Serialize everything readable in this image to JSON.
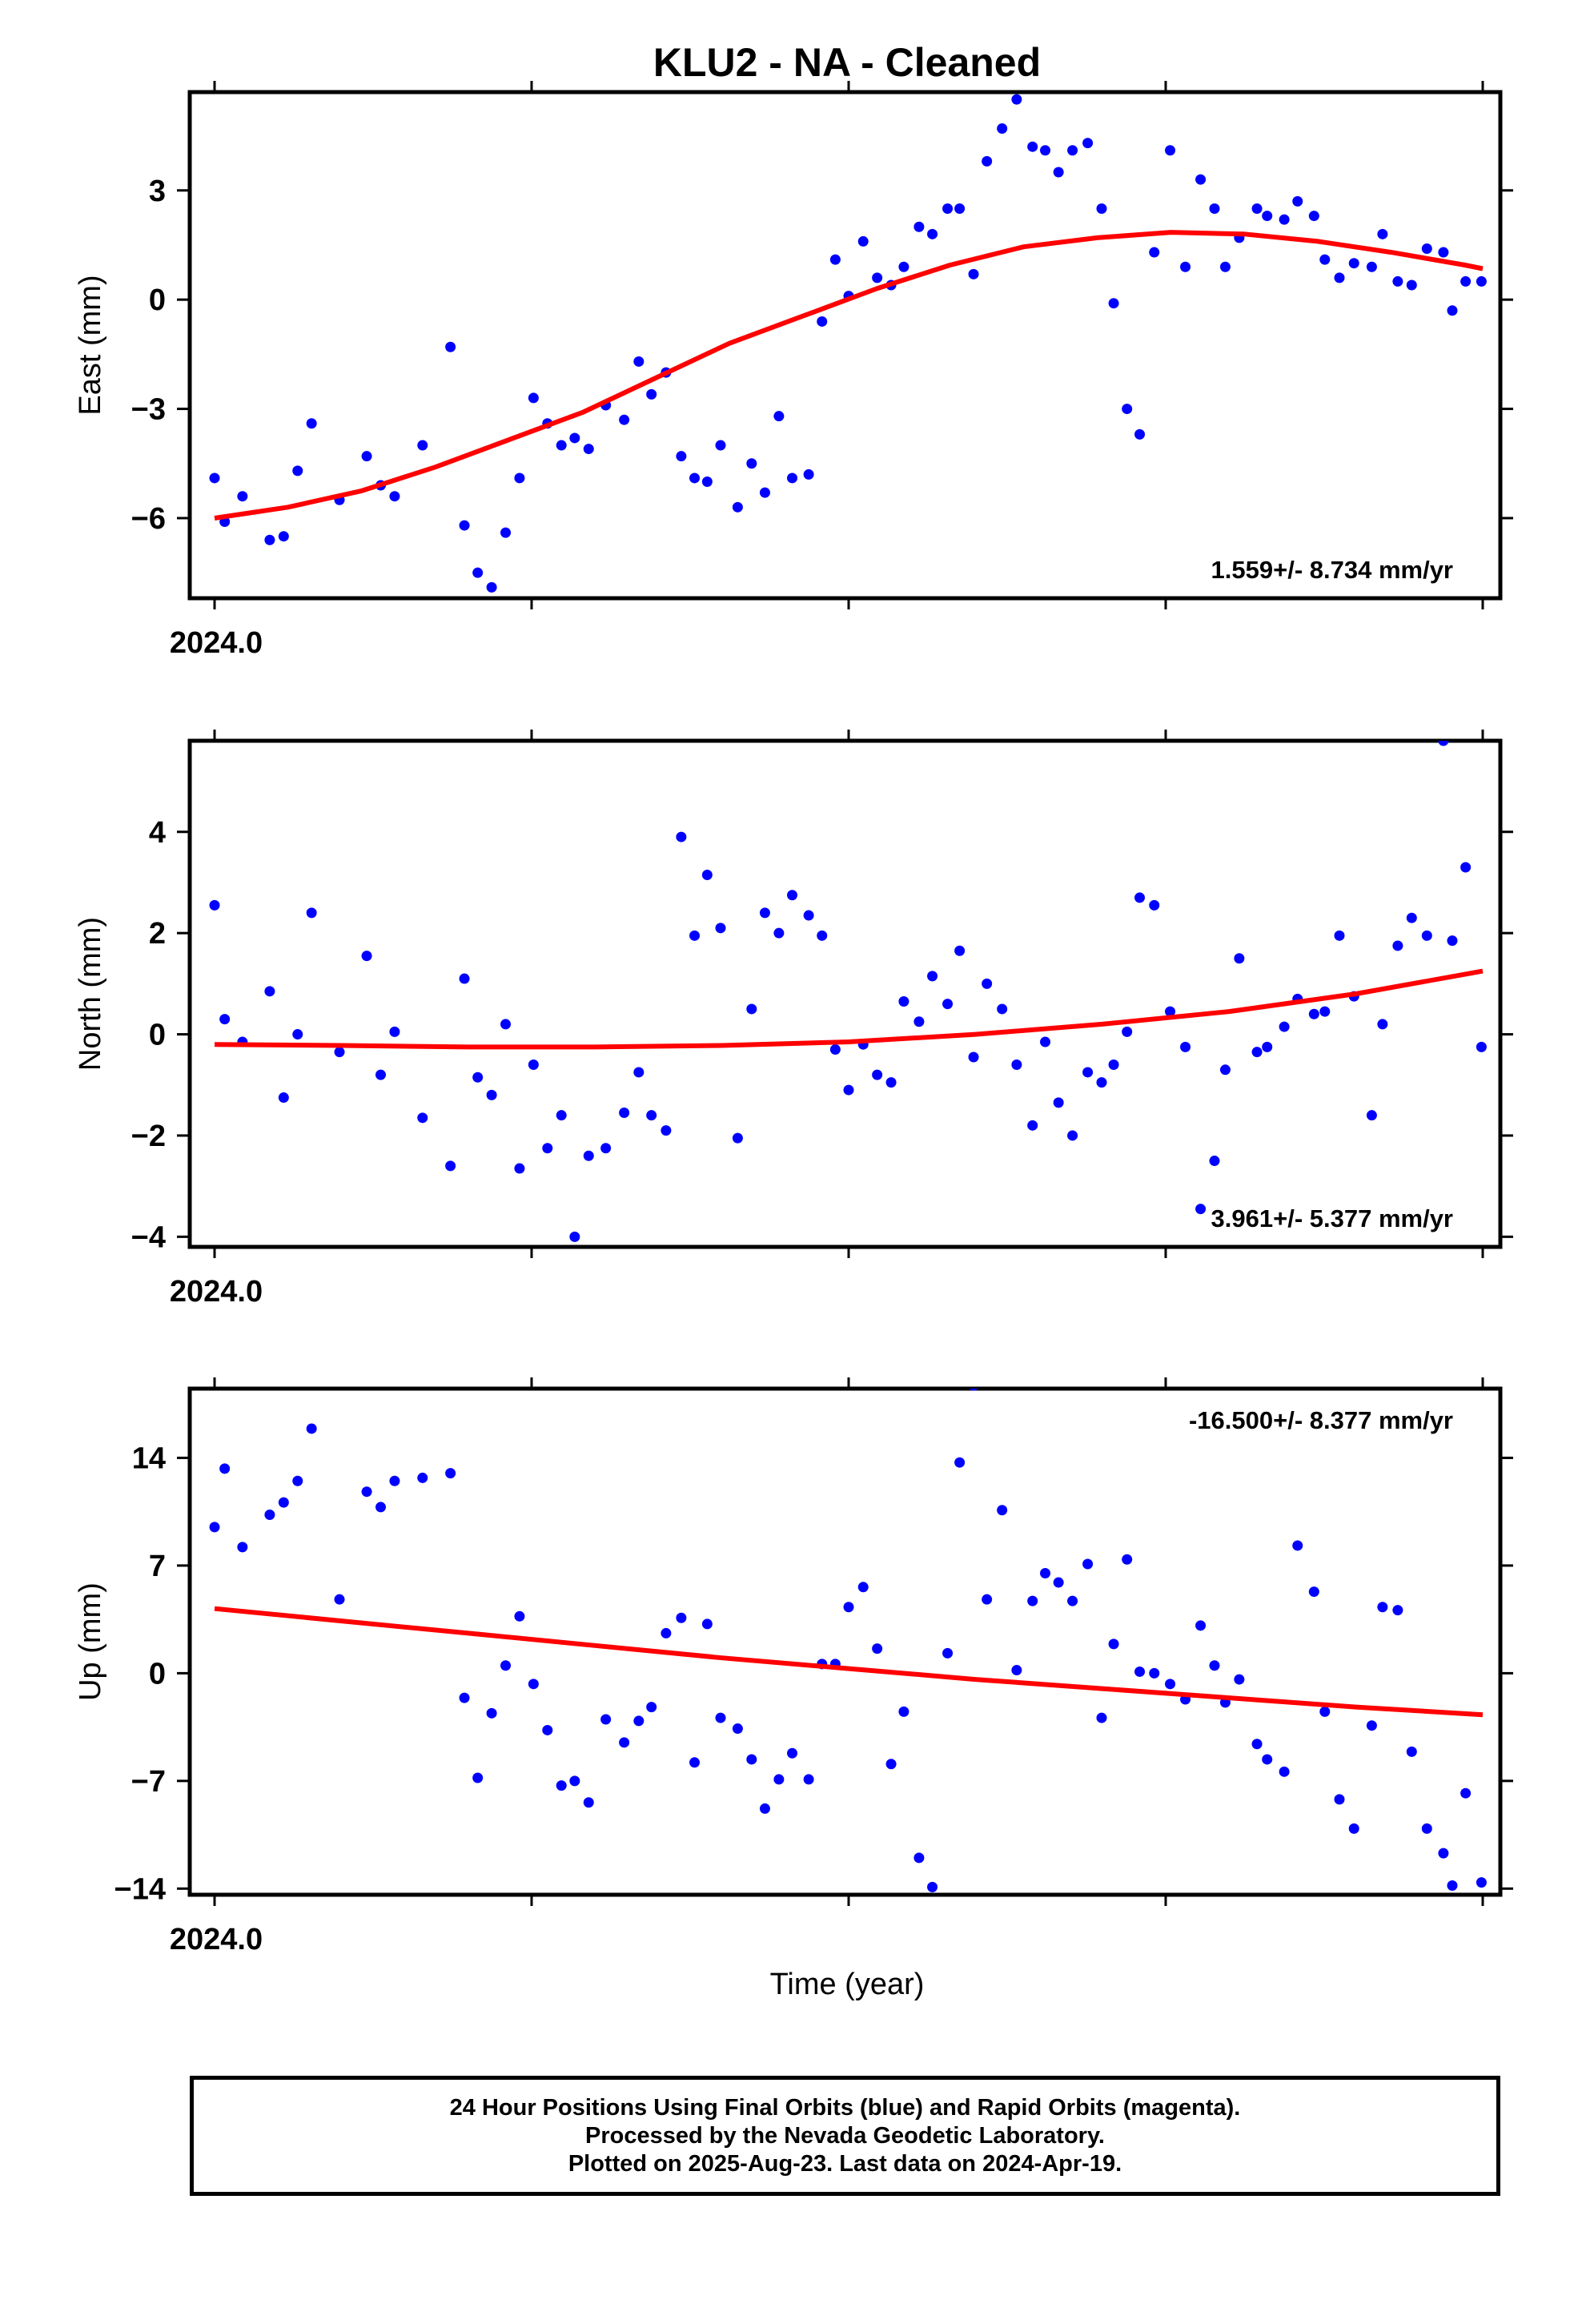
{
  "chart_data": {
    "title": "KLU2  - NA - Cleaned",
    "xlabel": "Time (year)",
    "x_tick_label": "2024.0",
    "point_color": "#0000ff",
    "fit_color": "#ff0000",
    "panels": [
      {
        "type": "scatter",
        "component": "east",
        "ylabel": "East (mm)",
        "ylim": [
          -8.2,
          5.7
        ],
        "yticks": [
          -6,
          -3,
          0,
          3
        ],
        "ytick_labels": [
          "−6",
          "−3",
          "0",
          "3"
        ],
        "rate_label": "1.559+/- 8.734 mm/yr",
        "rate_position": "bottom-right",
        "x": [
          2024.0,
          2024.0016,
          2024.0044,
          2024.0087,
          2024.0109,
          2024.0131,
          2024.0153,
          2024.0197,
          2024.024,
          2024.0262,
          2024.0284,
          2024.0328,
          2024.0372,
          2024.0394,
          2024.0415,
          2024.0437,
          2024.0459,
          2024.0481,
          2024.0503,
          2024.0525,
          2024.0547,
          2024.0568,
          2024.059,
          2024.0617,
          2024.0646,
          2024.0669,
          2024.0689,
          2024.0712,
          2024.0736,
          2024.0757,
          2024.0777,
          2024.0798,
          2024.0825,
          2024.0847,
          2024.0868,
          2024.089,
          2024.0911,
          2024.0937,
          2024.0958,
          2024.0979,
          2024.1,
          2024.1023,
          2024.1045,
          2024.1067,
          2024.1087,
          2024.1111,
          2024.1132,
          2024.1156,
          2024.1175,
          2024.1197,
          2024.1218,
          2024.1242,
          2024.1265,
          2024.129,
          2024.131,
          2024.1331,
          2024.1353,
          2024.1377,
          2024.1399,
          2024.1418,
          2024.1439,
          2024.1459,
          2024.1482,
          2024.1507,
          2024.1531,
          2024.1555,
          2024.1577,
          2024.1594,
          2024.1616,
          2024.1644,
          2024.166,
          2024.1687,
          2024.1708,
          2024.1734,
          2024.1751,
          2024.1774,
          2024.1797,
          2024.1825,
          2024.1842,
          2024.1866,
          2024.1888,
          2024.1912,
          2024.1938,
          2024.1952,
          2024.1973,
          2024.1998
        ],
        "y": [
          -4.9,
          -6.1,
          -5.4,
          -6.6,
          -6.5,
          -4.7,
          -3.4,
          -5.5,
          -4.3,
          -5.1,
          -5.4,
          -4.0,
          -1.3,
          -6.2,
          -7.5,
          -7.9,
          -6.4,
          -4.9,
          -2.7,
          -3.4,
          -4.0,
          -3.8,
          -4.1,
          -2.9,
          -3.3,
          -1.7,
          -2.6,
          -2.0,
          -4.3,
          -4.9,
          -5.0,
          -4.0,
          -5.7,
          -4.5,
          -5.3,
          -3.2,
          -4.9,
          -4.8,
          -0.6,
          1.1,
          0.1,
          1.6,
          0.6,
          0.4,
          0.9,
          2.0,
          1.8,
          2.5,
          2.5,
          0.7,
          3.8,
          4.7,
          5.5,
          4.2,
          4.1,
          3.5,
          4.1,
          4.3,
          2.5,
          -0.1,
          -3.0,
          -3.7,
          1.3,
          4.1,
          0.9,
          3.3,
          2.5,
          0.9,
          1.7,
          2.5,
          2.3,
          2.2,
          2.7,
          2.3,
          1.1,
          0.6,
          1.0,
          0.9,
          1.8,
          0.5,
          0.4,
          1.4,
          1.3,
          -0.3,
          0.5,
          0.5
        ],
        "fit_x": [
          2024.0,
          2024.0116,
          2024.0232,
          2024.0348,
          2024.0464,
          2024.058,
          2024.0696,
          2024.0812,
          2024.0928,
          2024.1044,
          2024.116,
          2024.1276,
          2024.1392,
          2024.1508,
          2024.1624,
          2024.174,
          2024.1856,
          2024.1972,
          2024.2
        ],
        "fit_y": [
          -6.0,
          -5.7,
          -5.25,
          -4.6,
          -3.85,
          -3.1,
          -2.15,
          -1.2,
          -0.45,
          0.3,
          0.95,
          1.45,
          1.7,
          1.85,
          1.8,
          1.6,
          1.3,
          0.95,
          0.85
        ]
      },
      {
        "type": "scatter",
        "component": "north",
        "ylabel": "North (mm)",
        "ylim": [
          -4.2,
          5.8
        ],
        "yticks": [
          -4,
          -2,
          0,
          2,
          4
        ],
        "ytick_labels": [
          "−4",
          "−2",
          "0",
          "2",
          "4"
        ],
        "rate_label": "3.961+/- 5.377 mm/yr",
        "rate_position": "bottom-right",
        "x": [
          2024.0,
          2024.0016,
          2024.0044,
          2024.0087,
          2024.0109,
          2024.0131,
          2024.0153,
          2024.0197,
          2024.024,
          2024.0262,
          2024.0284,
          2024.0328,
          2024.0372,
          2024.0394,
          2024.0415,
          2024.0437,
          2024.0459,
          2024.0481,
          2024.0503,
          2024.0525,
          2024.0547,
          2024.0568,
          2024.059,
          2024.0617,
          2024.0646,
          2024.0669,
          2024.0689,
          2024.0712,
          2024.0736,
          2024.0757,
          2024.0777,
          2024.0798,
          2024.0825,
          2024.0847,
          2024.0868,
          2024.089,
          2024.0911,
          2024.0937,
          2024.0958,
          2024.0979,
          2024.1,
          2024.1023,
          2024.1045,
          2024.1067,
          2024.1087,
          2024.1111,
          2024.1132,
          2024.1156,
          2024.1175,
          2024.1197,
          2024.1218,
          2024.1242,
          2024.1265,
          2024.129,
          2024.131,
          2024.1331,
          2024.1353,
          2024.1377,
          2024.1399,
          2024.1418,
          2024.1439,
          2024.1459,
          2024.1482,
          2024.1507,
          2024.1531,
          2024.1555,
          2024.1577,
          2024.1594,
          2024.1616,
          2024.1644,
          2024.166,
          2024.1687,
          2024.1708,
          2024.1734,
          2024.1751,
          2024.1774,
          2024.1797,
          2024.1825,
          2024.1842,
          2024.1866,
          2024.1888,
          2024.1912,
          2024.1938,
          2024.1952,
          2024.1973,
          2024.1998
        ],
        "y": [
          2.55,
          0.3,
          -0.15,
          0.85,
          -1.25,
          0.0,
          2.4,
          -0.35,
          1.55,
          -0.8,
          0.05,
          -1.65,
          -2.6,
          1.1,
          -0.85,
          -1.2,
          0.2,
          -2.65,
          -0.6,
          -2.25,
          -1.6,
          -4.0,
          -2.4,
          -2.25,
          -1.55,
          -0.75,
          -1.6,
          -1.9,
          3.9,
          1.95,
          3.15,
          2.1,
          -2.05,
          0.5,
          2.4,
          2.0,
          2.75,
          2.35,
          1.95,
          -0.3,
          -1.1,
          -0.2,
          -0.8,
          -0.95,
          0.65,
          0.25,
          1.15,
          0.6,
          1.65,
          -0.45,
          1.0,
          0.5,
          -0.6,
          -1.8,
          -0.15,
          -1.35,
          -2.0,
          -0.75,
          -0.95,
          -0.6,
          0.05,
          2.7,
          2.55,
          0.45,
          -0.25,
          -3.45,
          -2.5,
          -0.7,
          1.5,
          -0.35,
          -0.25,
          0.15,
          0.7,
          0.4,
          0.45,
          1.95,
          0.75,
          -1.6,
          0.2,
          1.75,
          2.3,
          1.95,
          5.8,
          1.85,
          3.3,
          -0.25
        ],
        "fit_x": [
          2024.0,
          2024.02,
          2024.04,
          2024.06,
          2024.08,
          2024.1,
          2024.12,
          2024.14,
          2024.16,
          2024.18,
          2024.2
        ],
        "fit_y": [
          -0.2,
          -0.22,
          -0.25,
          -0.25,
          -0.22,
          -0.15,
          0.0,
          0.2,
          0.45,
          0.8,
          1.25
        ]
      },
      {
        "type": "scatter",
        "component": "up",
        "ylabel": "Up (mm)",
        "ylim": [
          -14.4,
          18.5
        ],
        "yticks": [
          -14,
          -7,
          0,
          7,
          14
        ],
        "ytick_labels": [
          "−14",
          "−7",
          "0",
          "7",
          "14"
        ],
        "rate_label": "-16.500+/- 8.377 mm/yr",
        "rate_position": "top-right",
        "x": [
          2024.0,
          2024.0016,
          2024.0044,
          2024.0087,
          2024.0109,
          2024.0131,
          2024.0153,
          2024.0197,
          2024.024,
          2024.0262,
          2024.0284,
          2024.0328,
          2024.0372,
          2024.0394,
          2024.0415,
          2024.0437,
          2024.0459,
          2024.0481,
          2024.0503,
          2024.0525,
          2024.0547,
          2024.0568,
          2024.059,
          2024.0617,
          2024.0646,
          2024.0669,
          2024.0689,
          2024.0712,
          2024.0736,
          2024.0757,
          2024.0777,
          2024.0798,
          2024.0825,
          2024.0847,
          2024.0868,
          2024.089,
          2024.0911,
          2024.0937,
          2024.0958,
          2024.0979,
          2024.1,
          2024.1023,
          2024.1045,
          2024.1067,
          2024.1087,
          2024.1111,
          2024.1132,
          2024.1156,
          2024.1175,
          2024.1197,
          2024.1218,
          2024.1242,
          2024.1265,
          2024.129,
          2024.131,
          2024.1331,
          2024.1353,
          2024.1377,
          2024.1399,
          2024.1418,
          2024.1439,
          2024.1459,
          2024.1482,
          2024.1507,
          2024.1531,
          2024.1555,
          2024.1577,
          2024.1594,
          2024.1616,
          2024.1644,
          2024.166,
          2024.1687,
          2024.1708,
          2024.1734,
          2024.1751,
          2024.1774,
          2024.1797,
          2024.1825,
          2024.1842,
          2024.1866,
          2024.1888,
          2024.1912,
          2024.1938,
          2024.1952,
          2024.1973,
          2024.1998
        ],
        "y": [
          9.5,
          13.3,
          8.2,
          10.3,
          11.1,
          12.5,
          15.9,
          4.8,
          11.8,
          10.8,
          12.5,
          12.7,
          13.0,
          -1.6,
          -6.8,
          -2.6,
          0.5,
          3.7,
          -0.7,
          -3.7,
          -7.3,
          -7.0,
          -8.4,
          -3.0,
          -4.5,
          -3.1,
          -2.2,
          2.6,
          3.6,
          -5.8,
          3.2,
          -2.9,
          -3.6,
          -5.6,
          -8.8,
          -6.9,
          -5.2,
          -6.9,
          0.6,
          0.6,
          4.3,
          5.6,
          1.6,
          -5.9,
          -2.5,
          -12.0,
          -13.9,
          1.3,
          13.7,
          18.7,
          4.8,
          10.6,
          0.2,
          4.7,
          6.5,
          5.9,
          4.7,
          7.1,
          -2.9,
          1.9,
          7.4,
          0.1,
          0.0,
          -0.7,
          -1.7,
          3.1,
          0.5,
          -1.9,
          -0.4,
          -4.6,
          -5.6,
          -6.4,
          8.3,
          5.3,
          -2.5,
          -8.2,
          -10.1,
          -3.4,
          4.3,
          4.1,
          -5.1,
          -10.1,
          -11.7,
          -13.8,
          -7.8,
          -13.6
        ],
        "fit_x": [
          2024.0,
          2024.02,
          2024.04,
          2024.06,
          2024.08,
          2024.1,
          2024.12,
          2024.14,
          2024.16,
          2024.18,
          2024.2
        ],
        "fit_y": [
          4.2,
          3.4,
          2.6,
          1.8,
          1.0,
          0.3,
          -0.4,
          -1.0,
          -1.6,
          -2.2,
          -2.7
        ]
      }
    ]
  },
  "footer": {
    "line1": "24 Hour Positions Using Final Orbits (blue) and Rapid Orbits (magenta).",
    "line2": "Processed by the Nevada Geodetic Laboratory.",
    "line3": "Plotted on 2025-Aug-23. Last data on 2024-Apr-19."
  }
}
